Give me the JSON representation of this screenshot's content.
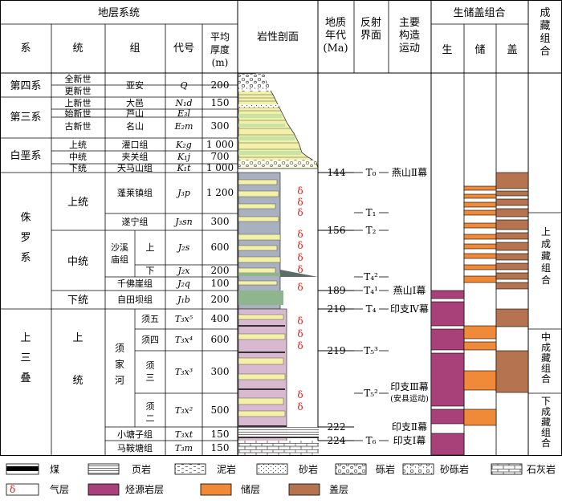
{
  "header": {
    "strata_system": "地层系统",
    "col_system": "系",
    "col_series": "统",
    "col_formation": "组",
    "col_code": "代号",
    "col_thickness": [
      "平均",
      "厚度",
      "(m)"
    ],
    "lithology": "岩性剖面",
    "age": [
      "地质",
      "年代",
      "(Ma)"
    ],
    "reflector": [
      "反射",
      "界面"
    ],
    "tectonic": [
      "主要",
      "构造",
      "运动"
    ],
    "combo": "生储盖组合",
    "source": "生",
    "reservoir": "储",
    "cap": "盖",
    "accumulation": [
      "成",
      "藏",
      "组",
      "合"
    ]
  },
  "systems": [
    "第四系",
    "第三系",
    "白垩系",
    "侏",
    "罗",
    "系",
    "上",
    "三",
    "叠"
  ],
  "series": [
    "全新世",
    "更新世",
    "上新世",
    "始新世",
    "古新世",
    "上统",
    "中统",
    "下统",
    "上统",
    "中统",
    "下统",
    "上",
    "统"
  ],
  "formations": [
    "亚安",
    "大邑",
    "芦山",
    "名山",
    "灌口组",
    "夹关组",
    "天马山组",
    "蓬莱镇组",
    "遂宁组",
    "沙溪",
    "庙组",
    "上",
    "下",
    "千佛崖组",
    "自田坝组",
    "须",
    "家",
    "河",
    "须五",
    "须四",
    "须",
    "三",
    "须",
    "二",
    "小塘子组",
    "马鞍塘组"
  ],
  "codes": [
    "Q",
    "N₁d",
    "E₃l",
    "E₂m",
    "K₂g",
    "K₁j",
    "K₁t",
    "J₃p",
    "J₃sn",
    "J₂s",
    "J₂x",
    "J₂q",
    "J₁b",
    "T₃x⁵",
    "T₃x⁴",
    "T₃x³",
    "T₃x²",
    "T₃xt",
    "T₃m"
  ],
  "thickness": [
    "200",
    "150",
    "300",
    "1 000",
    "700",
    "1 000",
    "1 200",
    "300",
    "600",
    "200",
    "100",
    "200",
    "400",
    "600",
    "300",
    "500",
    "150",
    "150"
  ],
  "ages": [
    "144",
    "156",
    "189",
    "210",
    "219",
    "222",
    "224"
  ],
  "reflectors": [
    "T₀",
    "T₁",
    "T₂",
    "T₄²",
    "T₄¹",
    "T₄",
    "T₅³",
    "T₅²",
    "T₆"
  ],
  "tectonics": [
    "燕山Ⅱ幕",
    "燕山Ⅰ幕",
    "印支Ⅳ幕",
    "印支Ⅲ幕",
    "(安县运动)",
    "印支Ⅱ幕",
    "印支Ⅰ幕"
  ],
  "gas_symbol": "δ",
  "accumulations": [
    [
      "上",
      "成",
      "藏",
      "组",
      "合"
    ],
    [
      "中",
      "成",
      "藏",
      "组",
      "合"
    ],
    [
      "下",
      "成",
      "藏",
      "组",
      "合"
    ]
  ],
  "legend": {
    "coal": "煤",
    "shale": "页岩",
    "mudstone": "泥岩",
    "sandstone": "砂岩",
    "conglomerate": "砾岩",
    "sandy_conglomerate": "砂砾岩",
    "limestone": "石灰岩",
    "gas_layer": "气层",
    "source_rock": "烃源岩层",
    "reservoir_layer": "储层",
    "cap_layer": "盖层"
  },
  "colors": {
    "source": "#a8407a",
    "reservoir": "#f08a38",
    "cap": "#b57350",
    "sand": "#f3f0a8",
    "green": "#c9e2a6",
    "grey": "#a9b1c0",
    "gas": "#e0201a"
  }
}
